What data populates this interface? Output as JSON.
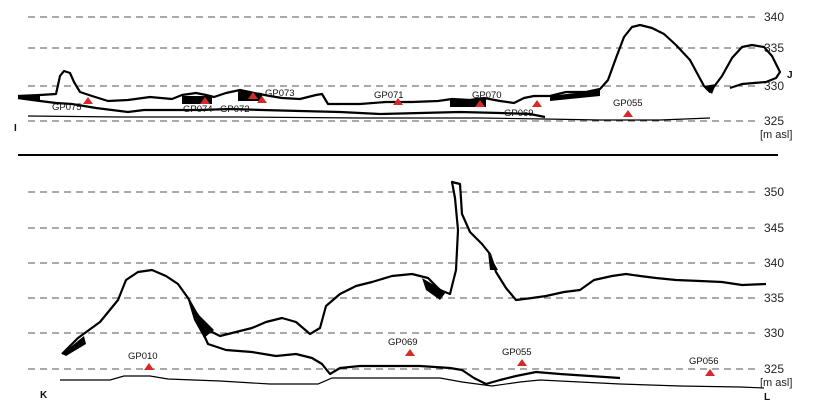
{
  "panels": [
    {
      "id": "top",
      "start_label": "I",
      "end_label": "J",
      "unit_label": "[m asl]",
      "ticks": [
        "340",
        "335",
        "330",
        "325"
      ],
      "stations": [
        {
          "name": "GP075",
          "elevation": 327.9
        },
        {
          "name": "GP074",
          "elevation": 327.6
        },
        {
          "name": "GP072",
          "elevation": 327.7
        },
        {
          "name": "GP073",
          "elevation": 328.0
        },
        {
          "name": "GP071",
          "elevation": 327.4
        },
        {
          "name": "GP070",
          "elevation": 327.3
        },
        {
          "name": "GP069",
          "elevation": 327.2
        },
        {
          "name": "GP055",
          "elevation": 325.8
        }
      ]
    },
    {
      "id": "bottom",
      "start_label": "K",
      "end_label": "L",
      "unit_label": "[m asl]",
      "ticks": [
        "350",
        "345",
        "340",
        "335",
        "330",
        "325"
      ],
      "stations": [
        {
          "name": "GP010",
          "elevation": 325.2
        },
        {
          "name": "GP069",
          "elevation": 327.2
        },
        {
          "name": "GP055",
          "elevation": 325.8
        },
        {
          "name": "GP056",
          "elevation": 324.6
        }
      ]
    }
  ],
  "colors": {
    "marker": "#d42a2a",
    "profile": "#000000",
    "grid": "#555555"
  }
}
